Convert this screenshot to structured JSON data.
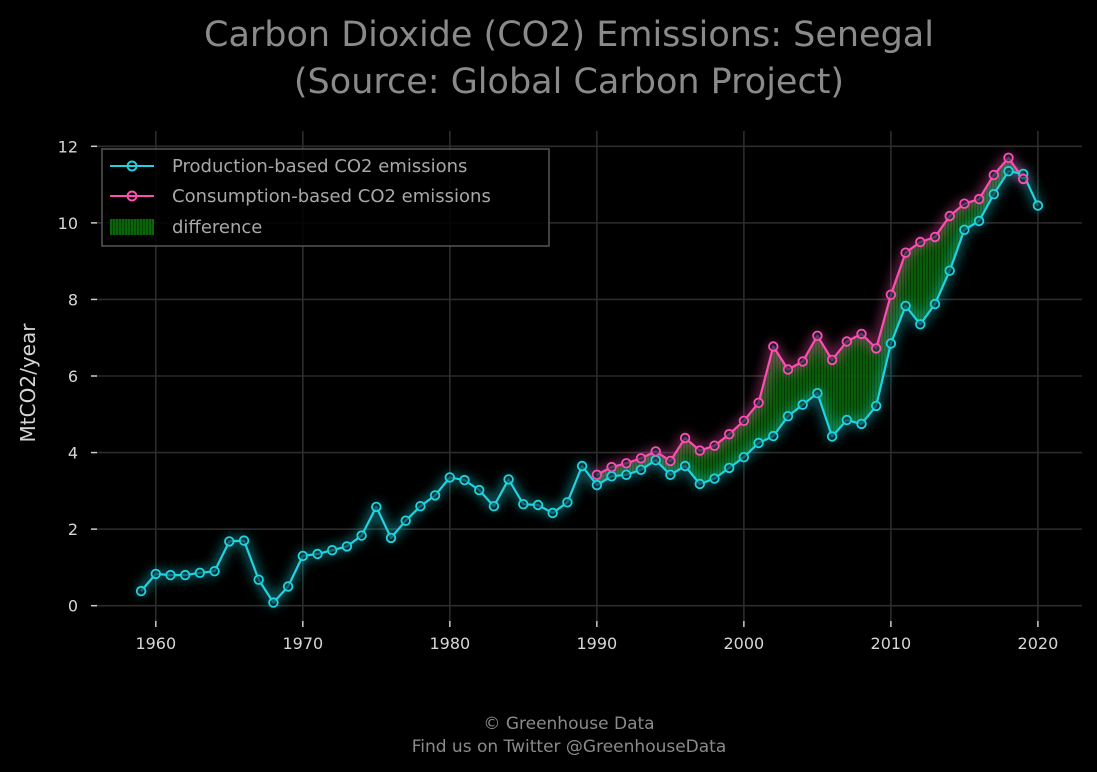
{
  "colors": {
    "background": "#000000",
    "production": "#1fd3e0",
    "consumption": "#ff4db3",
    "difference": "#0b7a0b",
    "grid": "#2c2c2c",
    "title": "#8a8a8a"
  },
  "footer": {
    "line1": "© Greenhouse Data",
    "line2": "Find us on Twitter @GreenhouseData"
  },
  "chart_data": {
    "type": "line",
    "title_line1": "Carbon Dioxide (CO2) Emissions: Senegal",
    "title_line2": "(Source: Global Carbon Project)",
    "xlabel": "",
    "ylabel": "MtCO2/year",
    "xlim": [
      1956,
      2023
    ],
    "ylim": [
      -0.4,
      12.4
    ],
    "x_ticks": [
      1960,
      1970,
      1980,
      1990,
      2000,
      2010,
      2020
    ],
    "y_ticks": [
      0,
      2,
      4,
      6,
      8,
      10,
      12
    ],
    "grid": true,
    "legend_position": "top-left",
    "legend": [
      "Production-based CO2 emissions",
      "Consumption-based CO2 emissions",
      "difference"
    ],
    "series": [
      {
        "name": "Production-based CO2 emissions",
        "x": [
          1959,
          1960,
          1961,
          1962,
          1963,
          1964,
          1965,
          1966,
          1967,
          1968,
          1969,
          1970,
          1971,
          1972,
          1973,
          1974,
          1975,
          1976,
          1977,
          1978,
          1979,
          1980,
          1981,
          1982,
          1983,
          1984,
          1985,
          1986,
          1987,
          1988,
          1989,
          1990,
          1991,
          1992,
          1993,
          1994,
          1995,
          1996,
          1997,
          1998,
          1999,
          2000,
          2001,
          2002,
          2003,
          2004,
          2005,
          2006,
          2007,
          2008,
          2009,
          2010,
          2011,
          2012,
          2013,
          2014,
          2015,
          2016,
          2017,
          2018,
          2019,
          2020
        ],
        "y": [
          0.38,
          0.83,
          0.8,
          0.8,
          0.86,
          0.9,
          1.68,
          1.7,
          0.68,
          0.08,
          0.5,
          1.3,
          1.35,
          1.45,
          1.55,
          1.83,
          2.58,
          1.77,
          2.22,
          2.6,
          2.88,
          3.35,
          3.28,
          3.02,
          2.6,
          3.3,
          2.65,
          2.63,
          2.42,
          2.7,
          3.65,
          3.15,
          3.38,
          3.42,
          3.55,
          3.8,
          3.42,
          3.65,
          3.18,
          3.32,
          3.6,
          3.88,
          4.25,
          4.43,
          4.95,
          5.25,
          5.55,
          4.42,
          4.85,
          4.75,
          5.22,
          6.85,
          7.83,
          7.35,
          7.88,
          8.75,
          9.82,
          10.05,
          10.75,
          11.35,
          11.28,
          10.45
        ]
      },
      {
        "name": "Consumption-based CO2 emissions",
        "x": [
          1990,
          1991,
          1992,
          1993,
          1994,
          1995,
          1996,
          1997,
          1998,
          1999,
          2000,
          2001,
          2002,
          2003,
          2004,
          2005,
          2006,
          2007,
          2008,
          2009,
          2010,
          2011,
          2012,
          2013,
          2014,
          2015,
          2016,
          2017,
          2018,
          2019
        ],
        "y": [
          3.42,
          3.62,
          3.72,
          3.85,
          4.03,
          3.78,
          4.38,
          4.05,
          4.18,
          4.48,
          4.83,
          5.3,
          6.77,
          6.17,
          6.38,
          7.05,
          6.42,
          6.9,
          7.1,
          6.72,
          8.12,
          9.22,
          9.5,
          9.63,
          10.18,
          10.5,
          10.62,
          11.25,
          11.7,
          11.15
        ]
      }
    ]
  }
}
